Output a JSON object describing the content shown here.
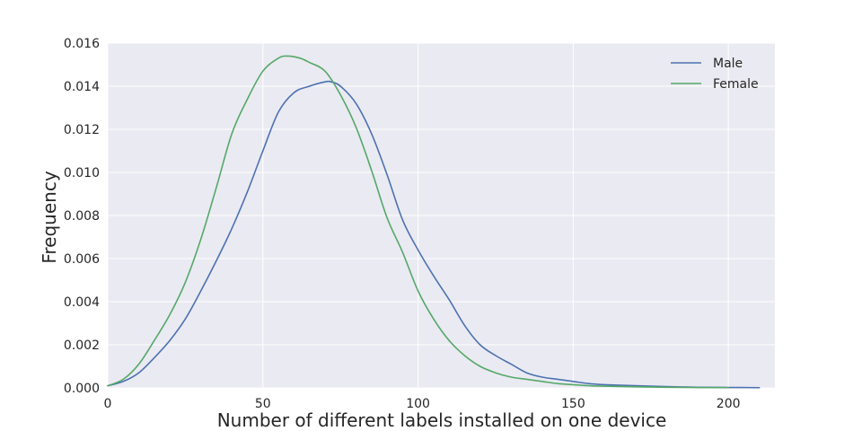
{
  "chart_data": {
    "type": "line",
    "title": "",
    "xlabel": "Number of different labels installed on one device",
    "ylabel": "Frequency",
    "xlim": [
      0,
      215
    ],
    "ylim": [
      0,
      0.016
    ],
    "x_ticks": [
      0,
      50,
      100,
      150,
      200
    ],
    "x_tick_labels": [
      "0",
      "50",
      "100",
      "150",
      "200"
    ],
    "y_ticks": [
      0,
      0.002,
      0.004,
      0.006,
      0.008,
      0.01,
      0.012,
      0.014,
      0.016
    ],
    "y_tick_labels": [
      "0.000",
      "0.002",
      "0.004",
      "0.006",
      "0.008",
      "0.010",
      "0.012",
      "0.014",
      "0.016"
    ],
    "grid": true,
    "legend_position": "top-right",
    "series": [
      {
        "name": "Male",
        "color": "#4C72B0",
        "x": [
          0,
          5,
          10,
          15,
          20,
          25,
          30,
          35,
          40,
          45,
          50,
          55,
          60,
          65,
          70,
          72,
          75,
          80,
          85,
          90,
          95,
          100,
          105,
          110,
          115,
          120,
          125,
          130,
          135,
          140,
          145,
          150,
          155,
          160,
          170,
          180,
          190,
          200,
          210
        ],
        "y": [
          0.0001,
          0.0003,
          0.0007,
          0.0014,
          0.0022,
          0.0032,
          0.0045,
          0.0059,
          0.0074,
          0.0091,
          0.011,
          0.0128,
          0.0137,
          0.014,
          0.0142,
          0.0142,
          0.014,
          0.0132,
          0.0118,
          0.0099,
          0.0078,
          0.0064,
          0.0052,
          0.0041,
          0.0029,
          0.002,
          0.0015,
          0.0011,
          0.0007,
          0.0005,
          0.0004,
          0.0003,
          0.0002,
          0.00015,
          0.0001,
          6e-05,
          3e-05,
          2e-05,
          1e-05
        ]
      },
      {
        "name": "Female",
        "color": "#55A868",
        "x": [
          0,
          5,
          10,
          15,
          20,
          25,
          30,
          35,
          40,
          45,
          50,
          55,
          58,
          62,
          65,
          70,
          75,
          80,
          85,
          90,
          95,
          100,
          105,
          110,
          115,
          120,
          125,
          130,
          135,
          140,
          145,
          150,
          155,
          160,
          170,
          180,
          190,
          200
        ],
        "y": [
          0.0001,
          0.0004,
          0.0011,
          0.0022,
          0.0034,
          0.0049,
          0.0069,
          0.0093,
          0.0118,
          0.0134,
          0.0147,
          0.0153,
          0.0154,
          0.0153,
          0.0151,
          0.0147,
          0.0136,
          0.0121,
          0.0101,
          0.0079,
          0.0063,
          0.0045,
          0.0032,
          0.0022,
          0.0015,
          0.001,
          0.0007,
          0.0005,
          0.0004,
          0.0003,
          0.0002,
          0.00015,
          0.0001,
          8e-05,
          5e-05,
          3e-05,
          2e-05,
          1e-05
        ]
      }
    ]
  }
}
